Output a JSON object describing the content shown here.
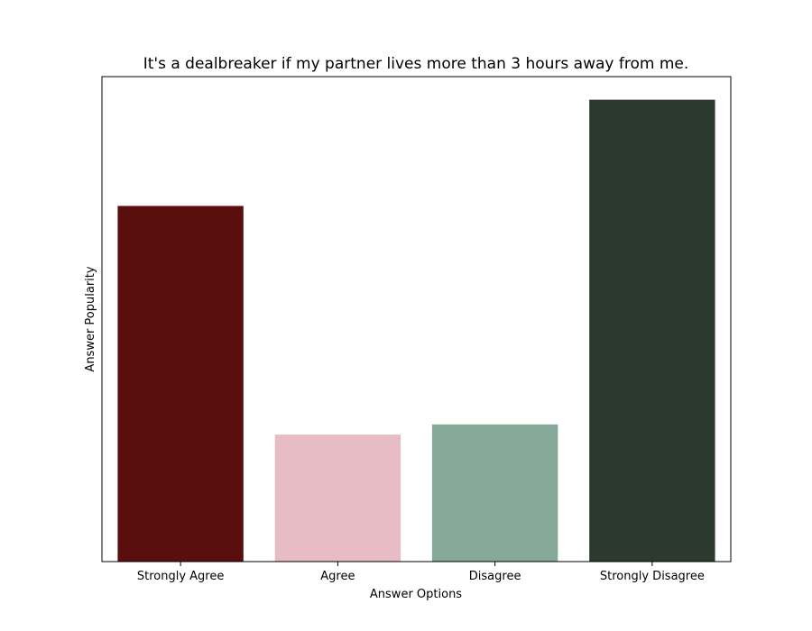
{
  "chart_data": {
    "type": "bar",
    "title": "It's a dealbreaker if my partner lives more than 3 hours away from me.",
    "xlabel": "Answer Options",
    "ylabel": "Answer Popularity",
    "categories": [
      "Strongly Agree",
      "Agree",
      "Disagree",
      "Strongly Disagree"
    ],
    "values": [
      0.77,
      0.275,
      0.297,
      1.0
    ],
    "colors": [
      "#5a0e0e",
      "#e7bcc4",
      "#86a899",
      "#2c3a2e"
    ],
    "ylim": [
      0,
      1.05
    ],
    "y_ticks_shown": false,
    "grid": false,
    "legend": false
  }
}
